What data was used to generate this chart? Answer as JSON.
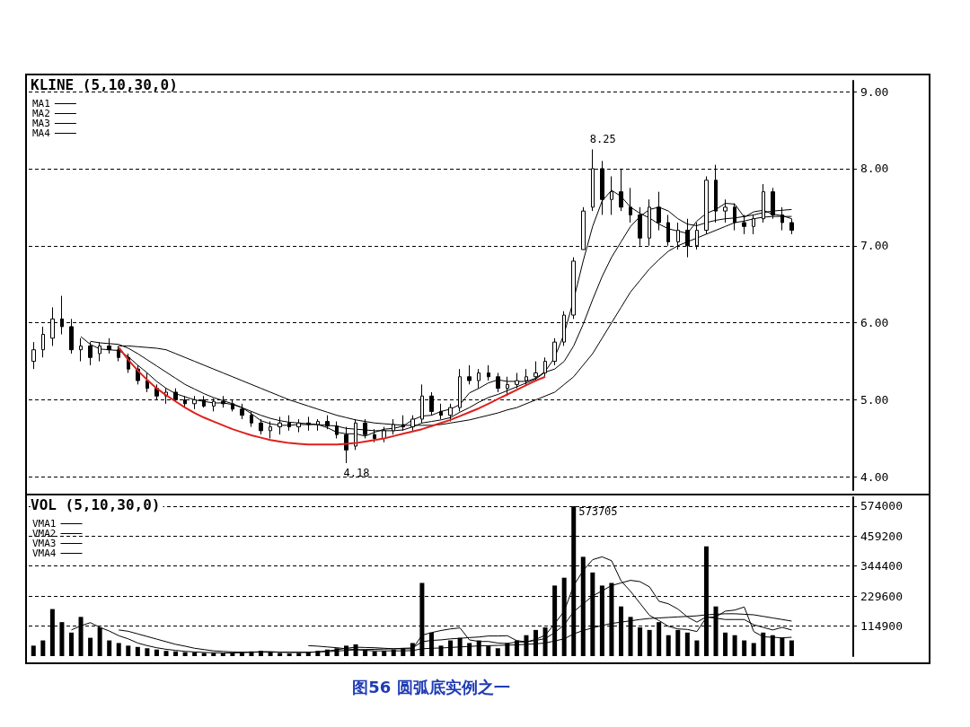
{
  "chart_data": [
    {
      "type": "candlestick",
      "title": "KLINE (5,10,30,0)",
      "categories": [
        null,
        null,
        null,
        null,
        null,
        null,
        null,
        null,
        null,
        null,
        null,
        null,
        null,
        null,
        null,
        null,
        null,
        null,
        null,
        null,
        null,
        null,
        null,
        null,
        null,
        null,
        null,
        null,
        null,
        null,
        null,
        null,
        null,
        null,
        null,
        null,
        null,
        null,
        null,
        null,
        null,
        null,
        null,
        null,
        null,
        null,
        null,
        null,
        null,
        null,
        null,
        null,
        null,
        null,
        null,
        null,
        null,
        null,
        null,
        null,
        null,
        null,
        null,
        null,
        null,
        null,
        null,
        null,
        null,
        null,
        null,
        null,
        null,
        null,
        null,
        null,
        null,
        null,
        null,
        null,
        null,
        null,
        null,
        null,
        null,
        null,
        null
      ],
      "series": [
        {
          "color": "#000000",
          "ohlc": [
            [
              5.5,
              5.75,
              5.4,
              5.65
            ],
            [
              5.65,
              5.95,
              5.55,
              5.85
            ],
            [
              5.8,
              6.2,
              5.7,
              6.05
            ],
            [
              6.05,
              6.35,
              5.85,
              5.95
            ],
            [
              5.95,
              6.05,
              5.6,
              5.65
            ],
            [
              5.65,
              5.8,
              5.5,
              5.7
            ],
            [
              5.7,
              5.75,
              5.45,
              5.55
            ],
            [
              5.6,
              5.75,
              5.5,
              5.7
            ],
            [
              5.7,
              5.8,
              5.6,
              5.65
            ],
            [
              5.65,
              5.7,
              5.5,
              5.55
            ],
            [
              5.55,
              5.6,
              5.35,
              5.4
            ],
            [
              5.4,
              5.45,
              5.2,
              5.25
            ],
            [
              5.25,
              5.35,
              5.1,
              5.15
            ],
            [
              5.15,
              5.2,
              5.0,
              5.05
            ],
            [
              5.05,
              5.15,
              4.95,
              5.1
            ],
            [
              5.1,
              5.15,
              4.98,
              5.0
            ],
            [
              5.0,
              5.05,
              4.9,
              4.95
            ],
            [
              4.95,
              5.05,
              4.88,
              5.0
            ],
            [
              5.0,
              5.05,
              4.9,
              4.92
            ],
            [
              4.92,
              5.02,
              4.85,
              4.98
            ],
            [
              4.98,
              5.05,
              4.9,
              4.95
            ],
            [
              4.95,
              5.0,
              4.85,
              4.88
            ],
            [
              4.88,
              4.95,
              4.75,
              4.8
            ],
            [
              4.8,
              4.85,
              4.65,
              4.7
            ],
            [
              4.7,
              4.75,
              4.55,
              4.6
            ],
            [
              4.6,
              4.72,
              4.5,
              4.65
            ],
            [
              4.65,
              4.78,
              4.55,
              4.7
            ],
            [
              4.7,
              4.8,
              4.6,
              4.65
            ],
            [
              4.65,
              4.75,
              4.58,
              4.7
            ],
            [
              4.7,
              4.78,
              4.6,
              4.68
            ],
            [
              4.68,
              4.75,
              4.6,
              4.72
            ],
            [
              4.72,
              4.8,
              4.62,
              4.66
            ],
            [
              4.66,
              4.72,
              4.5,
              4.55
            ],
            [
              4.55,
              4.65,
              4.18,
              4.35
            ],
            [
              4.4,
              4.75,
              4.35,
              4.7
            ],
            [
              4.7,
              4.75,
              4.5,
              4.55
            ],
            [
              4.55,
              4.62,
              4.45,
              4.5
            ],
            [
              4.5,
              4.65,
              4.45,
              4.6
            ],
            [
              4.6,
              4.75,
              4.55,
              4.68
            ],
            [
              4.68,
              4.8,
              4.6,
              4.65
            ],
            [
              4.65,
              4.8,
              4.6,
              4.75
            ],
            [
              4.75,
              5.2,
              4.7,
              5.05
            ],
            [
              5.05,
              5.1,
              4.8,
              4.85
            ],
            [
              4.85,
              4.95,
              4.75,
              4.8
            ],
            [
              4.8,
              4.95,
              4.72,
              4.9
            ],
            [
              4.9,
              5.4,
              4.85,
              5.3
            ],
            [
              5.3,
              5.45,
              5.2,
              5.25
            ],
            [
              5.25,
              5.4,
              5.15,
              5.35
            ],
            [
              5.35,
              5.45,
              5.25,
              5.3
            ],
            [
              5.3,
              5.35,
              5.1,
              5.15
            ],
            [
              5.15,
              5.3,
              5.05,
              5.2
            ],
            [
              5.2,
              5.35,
              5.15,
              5.25
            ],
            [
              5.25,
              5.4,
              5.18,
              5.3
            ],
            [
              5.3,
              5.5,
              5.25,
              5.35
            ],
            [
              5.35,
              5.55,
              5.3,
              5.5
            ],
            [
              5.5,
              5.8,
              5.45,
              5.75
            ],
            [
              5.75,
              6.15,
              5.7,
              6.1
            ],
            [
              6.1,
              6.85,
              6.05,
              6.8
            ],
            [
              6.95,
              7.5,
              6.95,
              7.45
            ],
            [
              7.5,
              8.25,
              7.45,
              8.0
            ],
            [
              8.0,
              8.1,
              7.4,
              7.6
            ],
            [
              7.6,
              7.9,
              7.4,
              7.7
            ],
            [
              7.7,
              8.0,
              7.45,
              7.5
            ],
            [
              7.5,
              7.75,
              7.3,
              7.4
            ],
            [
              7.4,
              7.5,
              7.0,
              7.1
            ],
            [
              7.1,
              7.6,
              7.0,
              7.5
            ],
            [
              7.5,
              7.7,
              7.2,
              7.3
            ],
            [
              7.3,
              7.4,
              7.0,
              7.05
            ],
            [
              7.05,
              7.3,
              6.95,
              7.2
            ],
            [
              7.2,
              7.35,
              6.85,
              7.0
            ],
            [
              7.0,
              7.3,
              6.95,
              7.2
            ],
            [
              7.2,
              7.9,
              7.15,
              7.85
            ],
            [
              7.85,
              8.05,
              7.3,
              7.45
            ],
            [
              7.45,
              7.6,
              7.3,
              7.5
            ],
            [
              7.5,
              7.55,
              7.2,
              7.3
            ],
            [
              7.3,
              7.4,
              7.15,
              7.25
            ],
            [
              7.25,
              7.4,
              7.15,
              7.35
            ],
            [
              7.35,
              7.8,
              7.3,
              7.7
            ],
            [
              7.7,
              7.75,
              7.35,
              7.4
            ],
            [
              7.4,
              7.5,
              7.2,
              7.3
            ],
            [
              7.3,
              7.35,
              7.15,
              7.2
            ],
            null,
            null,
            null,
            null,
            null,
            null
          ]
        },
        {
          "type": "line",
          "name": "MA1",
          "color": "#000000",
          "values": [
            null,
            null,
            null,
            null,
            null,
            5.82,
            5.72,
            5.66,
            5.65,
            5.64,
            5.56,
            5.45,
            5.35,
            5.24,
            5.15,
            5.08,
            5.04,
            5.0,
            4.98,
            4.96,
            4.96,
            4.94,
            4.9,
            4.82,
            4.73,
            4.69,
            4.67,
            4.67,
            4.68,
            4.68,
            4.68,
            4.64,
            4.58,
            4.56,
            4.56,
            4.53,
            4.58,
            4.62,
            4.63,
            4.66,
            4.74,
            4.79,
            4.8,
            4.85,
            4.88,
            4.94,
            5.09,
            5.15,
            5.22,
            5.26,
            5.24,
            5.24,
            5.24,
            5.28,
            5.37,
            5.55,
            5.86,
            6.3,
            6.8,
            7.25,
            7.58,
            7.72,
            7.64,
            7.5,
            7.42,
            7.36,
            7.28,
            7.22,
            7.19,
            7.16,
            7.32,
            7.42,
            7.47,
            7.55,
            7.54,
            7.37,
            7.44,
            7.46,
            7.41,
            7.39,
            7.35,
            null,
            null,
            null,
            null,
            null,
            null
          ]
        },
        {
          "type": "line",
          "name": "MA2",
          "color": "#000000",
          "values": [
            null,
            null,
            null,
            null,
            null,
            null,
            5.76,
            5.74,
            5.73,
            5.72,
            5.67,
            5.6,
            5.52,
            5.44,
            5.36,
            5.28,
            5.2,
            5.14,
            5.08,
            5.03,
            4.99,
            4.95,
            4.9,
            4.85,
            4.8,
            4.76,
            4.73,
            4.71,
            4.7,
            4.69,
            4.68,
            4.67,
            4.66,
            4.63,
            4.62,
            4.61,
            4.6,
            4.6,
            4.6,
            4.61,
            4.65,
            4.7,
            4.72,
            4.74,
            4.77,
            4.84,
            4.9,
            4.97,
            5.03,
            5.07,
            5.12,
            5.17,
            5.22,
            5.27,
            5.36,
            5.4,
            5.5,
            5.7,
            5.98,
            6.3,
            6.6,
            6.85,
            7.05,
            7.25,
            7.38,
            7.47,
            7.5,
            7.45,
            7.35,
            7.28,
            7.26,
            7.3,
            7.33,
            7.35,
            7.36,
            7.38,
            7.4,
            7.43,
            7.45,
            7.46,
            7.47,
            null,
            null,
            null,
            null,
            null,
            null
          ]
        },
        {
          "type": "line",
          "name": "MA3",
          "color": "#000000",
          "values": [
            null,
            null,
            null,
            null,
            null,
            null,
            null,
            null,
            null,
            5.7,
            5.7,
            5.69,
            5.68,
            5.67,
            5.65,
            5.6,
            5.55,
            5.5,
            5.45,
            5.4,
            5.35,
            5.3,
            5.25,
            5.2,
            5.15,
            5.1,
            5.05,
            5.0,
            4.96,
            4.92,
            4.88,
            4.84,
            4.8,
            4.77,
            4.74,
            4.72,
            4.7,
            4.69,
            4.68,
            4.67,
            4.67,
            4.67,
            4.67,
            4.68,
            4.7,
            4.72,
            4.74,
            4.77,
            4.8,
            4.83,
            4.87,
            4.9,
            4.95,
            5.0,
            5.05,
            5.1,
            5.2,
            5.3,
            5.45,
            5.6,
            5.8,
            6.0,
            6.2,
            6.4,
            6.55,
            6.7,
            6.82,
            6.93,
            7.0,
            7.05,
            7.1,
            7.15,
            7.2,
            7.25,
            7.3,
            7.32,
            7.35,
            7.37,
            7.38,
            7.38,
            7.38,
            null,
            null,
            null,
            null,
            null,
            null
          ]
        },
        {
          "type": "line",
          "name": "MA4",
          "color": "#000000",
          "values": [
            null,
            null,
            null,
            null,
            null,
            null,
            null,
            null,
            null,
            null,
            null,
            null,
            null,
            null,
            null,
            null,
            null,
            null,
            null,
            null,
            null,
            null,
            null,
            null,
            null,
            null,
            null,
            null,
            null,
            null,
            null,
            null,
            null,
            null,
            null,
            null,
            null,
            null,
            null,
            null,
            null,
            null,
            null,
            null,
            null,
            null,
            null,
            null,
            null,
            null,
            null,
            null,
            null,
            null,
            null,
            null,
            null,
            null,
            null,
            null,
            null,
            null,
            null,
            null,
            null,
            null,
            null,
            null,
            null,
            null,
            null,
            null,
            null,
            null,
            null,
            null,
            null,
            null,
            null,
            null,
            null,
            null,
            null,
            null,
            null,
            null,
            null
          ]
        },
        {
          "type": "line",
          "color": "#e0201b",
          "values": [
            null,
            null,
            null,
            null,
            null,
            null,
            null,
            null,
            null,
            5.68,
            5.52,
            5.38,
            5.26,
            5.15,
            5.06,
            4.98,
            4.9,
            4.83,
            4.77,
            4.72,
            4.67,
            4.62,
            4.58,
            4.54,
            4.51,
            4.48,
            4.46,
            4.44,
            4.43,
            4.42,
            4.42,
            4.42,
            4.42,
            4.43,
            4.44,
            4.46,
            4.48,
            4.5,
            4.53,
            4.56,
            4.59,
            4.62,
            4.66,
            4.7,
            4.74,
            4.79,
            4.84,
            4.89,
            4.95,
            5.01,
            5.07,
            5.13,
            5.19,
            5.25,
            5.3,
            null,
            null,
            null,
            null,
            null,
            null,
            null,
            null,
            null,
            null,
            null,
            null,
            null,
            null,
            null,
            null,
            null,
            null,
            null,
            null,
            null,
            null,
            null,
            null,
            null,
            null,
            null,
            null,
            null,
            null,
            null,
            null
          ]
        }
      ],
      "ylim": [
        3.83,
        9.14
      ],
      "yticks": [
        {
          "value": 4,
          "label": "4.00"
        },
        {
          "value": 5,
          "label": "5.00"
        },
        {
          "value": 6,
          "label": "6.00"
        },
        {
          "value": 7,
          "label": "7.00"
        },
        {
          "value": 8,
          "label": "8.00"
        },
        {
          "value": 9,
          "label": "9.00"
        }
      ],
      "grid": "y",
      "legend": "top left",
      "tick_labels": "y",
      "annotations": [
        "8.25",
        "4.18"
      ]
    },
    {
      "type": "bar",
      "title": "VOL (5,10,30,0)",
      "categories": [
        null,
        null,
        null,
        null,
        null,
        null,
        null,
        null,
        null,
        null,
        null,
        null,
        null,
        null,
        null,
        null,
        null,
        null,
        null,
        null,
        null,
        null,
        null,
        null,
        null,
        null,
        null,
        null,
        null,
        null,
        null,
        null,
        null,
        null,
        null,
        null,
        null,
        null,
        null,
        null,
        null,
        null,
        null,
        null,
        null,
        null,
        null,
        null,
        null,
        null,
        null,
        null,
        null,
        null,
        null,
        null,
        null,
        null,
        null,
        null,
        null,
        null,
        null,
        null,
        null,
        null,
        null,
        null,
        null,
        null,
        null,
        null,
        null,
        null,
        null,
        null,
        null,
        null,
        null,
        null,
        null,
        null,
        null,
        null,
        null,
        null,
        null
      ],
      "series": [
        {
          "color": "#000000",
          "values": [
            40000,
            60000,
            180000,
            130000,
            90000,
            150000,
            70000,
            110000,
            60000,
            50000,
            40000,
            35000,
            30000,
            25000,
            20000,
            18000,
            15000,
            14000,
            12000,
            12000,
            10000,
            12000,
            15000,
            18000,
            20000,
            15000,
            12000,
            10000,
            12000,
            14000,
            20000,
            25000,
            30000,
            40000,
            45000,
            25000,
            18000,
            20000,
            25000,
            30000,
            50000,
            280000,
            90000,
            40000,
            60000,
            70000,
            50000,
            60000,
            40000,
            30000,
            50000,
            60000,
            80000,
            100000,
            110000,
            270000,
            300000,
            573705,
            380000,
            320000,
            270000,
            280000,
            190000,
            150000,
            110000,
            100000,
            130000,
            80000,
            100000,
            90000,
            60000,
            420000,
            190000,
            90000,
            80000,
            60000,
            50000,
            90000,
            80000,
            70000,
            60000,
            null,
            null,
            null,
            null,
            null,
            null
          ]
        },
        {
          "type": "line",
          "name": "VMA1",
          "color": "#000000",
          "values": [
            null,
            null,
            null,
            null,
            100000,
            116000,
            128000,
            110000,
            96000,
            78000,
            66000,
            50000,
            40000,
            32000,
            26000,
            22000,
            18000,
            16000,
            14000,
            13000,
            12000,
            12000,
            13000,
            15000,
            17000,
            17000,
            15000,
            14000,
            14000,
            14000,
            16000,
            20000,
            24000,
            30000,
            34000,
            33000,
            32000,
            30000,
            28000,
            28000,
            28000,
            80000,
            90000,
            98000,
            104000,
            108000,
            62000,
            56000,
            56000,
            50000,
            48000,
            54000,
            54000,
            64000,
            80000,
            124000,
            172000,
            270000,
            327000,
            369000,
            380000,
            365000,
            288000,
            248000,
            202000,
            156000,
            136000,
            114000,
            104000,
            102000,
            94000,
            148000,
            150000,
            172000,
            176000,
            188000,
            94000,
            74000,
            72000,
            70000,
            72000,
            null,
            null,
            null,
            null,
            null,
            null
          ]
        },
        {
          "type": "line",
          "name": "VMA2",
          "color": "#000000",
          "values": [
            null,
            null,
            null,
            null,
            null,
            null,
            null,
            null,
            null,
            100000,
            95000,
            85000,
            75000,
            65000,
            55000,
            45000,
            38000,
            30000,
            25000,
            20000,
            18000,
            16000,
            15000,
            15000,
            15000,
            15000,
            15000,
            15000,
            15000,
            15000,
            16000,
            17000,
            19000,
            22000,
            24000,
            25000,
            26000,
            27000,
            28000,
            30000,
            31000,
            55000,
            60000,
            62000,
            66000,
            68000,
            71000,
            73000,
            77000,
            77000,
            78000,
            59000,
            55000,
            60000,
            67000,
            90000,
            120000,
            170000,
            200000,
            230000,
            250000,
            270000,
            280000,
            290000,
            285000,
            265000,
            210000,
            200000,
            180000,
            150000,
            130000,
            150000,
            145000,
            140000,
            140000,
            140000,
            120000,
            110000,
            100000,
            110000,
            100000,
            null,
            null,
            null,
            null,
            null,
            null
          ]
        },
        {
          "type": "line",
          "name": "VMA3",
          "color": "#000000",
          "values": [
            null,
            null,
            null,
            null,
            null,
            null,
            null,
            null,
            null,
            null,
            null,
            null,
            null,
            null,
            null,
            null,
            null,
            null,
            null,
            null,
            null,
            null,
            null,
            null,
            null,
            null,
            null,
            null,
            null,
            40000,
            38000,
            35000,
            32000,
            28000,
            25000,
            22000,
            20000,
            20000,
            20000,
            20000,
            21000,
            28000,
            30000,
            31000,
            33000,
            35000,
            37000,
            39000,
            40000,
            41000,
            42000,
            43000,
            45000,
            47000,
            50000,
            58000,
            66000,
            85000,
            98000,
            108000,
            117000,
            125000,
            130000,
            135000,
            140000,
            144000,
            146000,
            148000,
            150000,
            152000,
            154000,
            158000,
            160000,
            162000,
            162000,
            160000,
            158000,
            152000,
            146000,
            140000,
            134000,
            null,
            null,
            null,
            null,
            null,
            null
          ]
        },
        {
          "type": "line",
          "name": "VMA4",
          "color": "#000000",
          "values": [
            null,
            null,
            null,
            null,
            null,
            null,
            null,
            null,
            null,
            null,
            null,
            null,
            null,
            null,
            null,
            null,
            null,
            null,
            null,
            null,
            null,
            null,
            null,
            null,
            null,
            null,
            null,
            null,
            null,
            null,
            null,
            null,
            null,
            null,
            null,
            null,
            null,
            null,
            null,
            null,
            null,
            null,
            null,
            null,
            null,
            null,
            null,
            null,
            null,
            null,
            null,
            null,
            null,
            null,
            null,
            null,
            null,
            null,
            null,
            null,
            null,
            null,
            null,
            null,
            null,
            null,
            null,
            null,
            null,
            null,
            null,
            null,
            null,
            null,
            null,
            null,
            null,
            null,
            null,
            null,
            null,
            null,
            null,
            null,
            null,
            null,
            null
          ]
        }
      ],
      "ylim": [
        0,
        608000
      ],
      "yticks": [
        114900,
        229600,
        344400,
        459200,
        574000
      ],
      "grid": "y",
      "legend": "top left",
      "tick_labels": "y",
      "annotations": [
        "573705",
        "图56  圆弧底实例之一"
      ]
    }
  ]
}
